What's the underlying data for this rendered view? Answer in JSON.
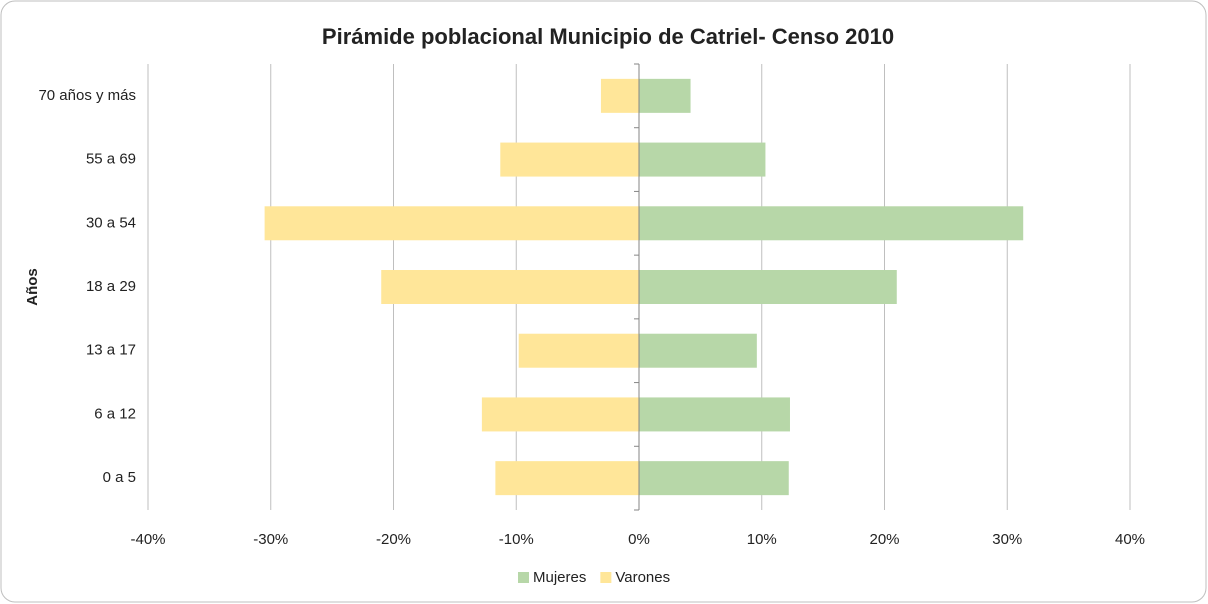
{
  "chart_data": {
    "type": "bar",
    "orientation": "horizontal",
    "title": "Pirámide poblacional Municipio de Catriel- Censo 2010",
    "y_label": "Años",
    "categories": [
      "70 años y más",
      "55 a 69",
      "30 a 54",
      "18 a 29",
      "13 a 17",
      "6 a 12",
      "0 a 5"
    ],
    "series": [
      {
        "name": "Mujeres",
        "color": "#b7d7a8",
        "values": [
          4.2,
          10.3,
          31.3,
          21.0,
          9.6,
          12.3,
          12.2
        ]
      },
      {
        "name": "Varones",
        "color": "#ffe699",
        "values": [
          -3.1,
          -11.3,
          -30.5,
          -21.0,
          -9.8,
          -12.8,
          -11.7
        ]
      }
    ],
    "xlim": [
      -40,
      40
    ],
    "xticks": [
      {
        "value": -40,
        "label": "-40%"
      },
      {
        "value": -30,
        "label": "-30%"
      },
      {
        "value": -20,
        "label": "-20%"
      },
      {
        "value": -10,
        "label": "-10%"
      },
      {
        "value": 0,
        "label": "0%"
      },
      {
        "value": 10,
        "label": "10%"
      },
      {
        "value": 20,
        "label": "20%"
      },
      {
        "value": 30,
        "label": "30%"
      },
      {
        "value": 40,
        "label": "40%"
      }
    ],
    "grid": true,
    "legend": "bottom"
  }
}
